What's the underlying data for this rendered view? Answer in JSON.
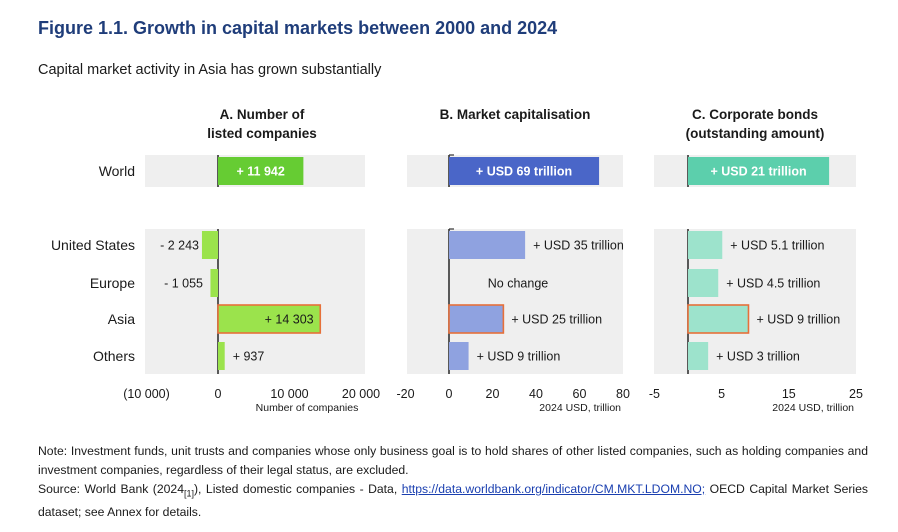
{
  "figure": {
    "title": "Figure 1.1. Growth in capital markets between 2000 and 2024",
    "subtitle": "Capital market activity in Asia has grown substantially"
  },
  "notes": {
    "note": "Note: Investment funds, unit trusts and companies whose only business goal is to hold shares of other listed companies, such as holding companies and investment companies, regardless of their legal status, are excluded.",
    "source_prefix": "Source: World Bank (2024",
    "source_ref": "[1]",
    "source_mid": "), Listed domestic companies - Data, ",
    "source_link": "https://data.worldbank.org/indicator/CM.MKT.LDOM.NO;",
    "source_suffix": " OECD Capital Market Series dataset; see Annex for details."
  },
  "chart_data": [
    {
      "type": "bar",
      "orientation": "horizontal",
      "title": "A. Number of listed companies",
      "title_lines": [
        "A. Number of",
        "listed companies"
      ],
      "categories": [
        "World",
        "United States",
        "Europe",
        "Asia",
        "Others"
      ],
      "values": [
        11942,
        -2243,
        -1055,
        14303,
        937
      ],
      "labels": [
        "+ 11 942",
        "- 2 243",
        "- 1 055",
        "+ 14 303",
        "+ 937"
      ],
      "xlim": [
        -10000,
        20000
      ],
      "xticks": [
        -10000,
        0,
        10000,
        20000
      ],
      "xtick_labels": [
        "(10 000)",
        "0",
        "10 000",
        "20 000"
      ],
      "xlabel": "Number of companies",
      "grid": false,
      "colors": {
        "world": "#66cc33",
        "region": "#9be34c",
        "highlight_border": "#e6703a"
      }
    },
    {
      "type": "bar",
      "orientation": "horizontal",
      "title": "B. Market capitalisation",
      "title_lines": [
        "B. Market capitalisation"
      ],
      "categories": [
        "World",
        "United States",
        "Europe",
        "Asia",
        "Others"
      ],
      "values": [
        69,
        35,
        0,
        25,
        9
      ],
      "labels": [
        "+ USD 69 trillion",
        "+ USD 35 trillion",
        "No change",
        "+ USD 25 trillion",
        "+ USD 9 trillion"
      ],
      "xlim": [
        -20,
        80
      ],
      "xticks": [
        -20,
        0,
        20,
        40,
        60,
        80
      ],
      "xtick_labels": [
        "-20",
        "0",
        "20",
        "40",
        "60",
        "80"
      ],
      "xlabel": "2024 USD, trillion",
      "grid": false,
      "colors": {
        "world": "#4a66c8",
        "region": "#8fa2e0",
        "highlight_border": "#e6703a"
      }
    },
    {
      "type": "bar",
      "orientation": "horizontal",
      "title": "C. Corporate bonds (outstanding amount)",
      "title_lines": [
        "C. Corporate bonds",
        "(outstanding amount)"
      ],
      "categories": [
        "World",
        "United States",
        "Europe",
        "Asia",
        "Others"
      ],
      "values": [
        21,
        5.1,
        4.5,
        9,
        3
      ],
      "labels": [
        "+ USD 21 trillion",
        "+ USD 5.1 trillion",
        "+ USD 4.5 trillion",
        "+ USD 9 trillion",
        "+ USD 3 trillion"
      ],
      "xlim": [
        -5,
        25
      ],
      "xticks": [
        -5,
        5,
        15,
        25
      ],
      "xtick_labels": [
        "-5",
        "5",
        "15",
        "25"
      ],
      "xlabel": "2024 USD, trillion",
      "grid": false,
      "colors": {
        "world": "#5ccfac",
        "region": "#9de3cc",
        "highlight_border": "#e6703a"
      }
    }
  ]
}
